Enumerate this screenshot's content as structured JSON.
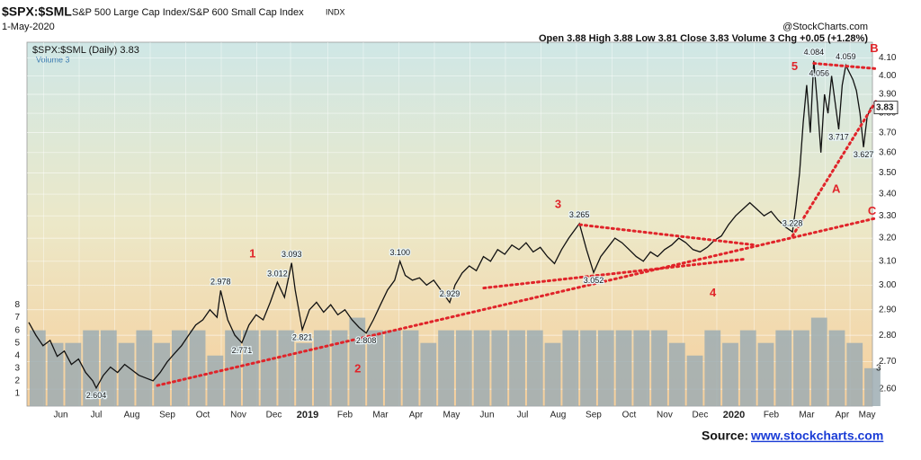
{
  "chart_data": {
    "type": "line",
    "title_symbol": "$SPX:$SML",
    "title": "S&P 500 Large Cap Index/S&P 600 Small Cap Index",
    "exchange": "INDX",
    "date": "1-May-2020",
    "watermark": "@StockCharts.com",
    "quote": "Open 3.88  High 3.88  Low 3.81  Close 3.83  Volume 3  Chg +0.05 (+1.28%)",
    "legend_price": "$SPX:$SML (Daily) 3.83",
    "legend_volume": "Volume 3",
    "last_price": {
      "value": 3.83,
      "label": "3.83"
    },
    "last_volume": 3,
    "source_label": "Source:",
    "source_link": "www.stockcharts.com",
    "log_scale": true,
    "grid": true,
    "xlim": [
      -0.45,
      23.35
    ],
    "ylim": [
      2.54,
      4.19
    ],
    "y2lim": [
      0,
      28.8
    ],
    "xticks": [
      {
        "value": 0.5,
        "label": "Jun"
      },
      {
        "value": 1.5,
        "label": "Jul"
      },
      {
        "value": 2.5,
        "label": "Aug"
      },
      {
        "value": 3.5,
        "label": "Sep"
      },
      {
        "value": 4.5,
        "label": "Oct"
      },
      {
        "value": 5.5,
        "label": "Nov"
      },
      {
        "value": 6.5,
        "label": "Dec"
      },
      {
        "value": 7.45,
        "label": "2019"
      },
      {
        "value": 8.5,
        "label": "Feb"
      },
      {
        "value": 9.5,
        "label": "Mar"
      },
      {
        "value": 10.5,
        "label": "Apr"
      },
      {
        "value": 11.5,
        "label": "May"
      },
      {
        "value": 12.5,
        "label": "Jun"
      },
      {
        "value": 13.5,
        "label": "Jul"
      },
      {
        "value": 14.5,
        "label": "Aug"
      },
      {
        "value": 15.5,
        "label": "Sep"
      },
      {
        "value": 16.5,
        "label": "Oct"
      },
      {
        "value": 17.5,
        "label": "Nov"
      },
      {
        "value": 18.5,
        "label": "Dec"
      },
      {
        "value": 19.45,
        "label": "2020"
      },
      {
        "value": 20.5,
        "label": "Feb"
      },
      {
        "value": 21.5,
        "label": "Mar"
      },
      {
        "value": 22.5,
        "label": "Apr"
      },
      {
        "value": 23.2,
        "label": "May"
      }
    ],
    "yticks": [
      {
        "value": 2.6,
        "label": "2.60"
      },
      {
        "value": 2.7,
        "label": "2.70"
      },
      {
        "value": 2.8,
        "label": "2.80"
      },
      {
        "value": 2.9,
        "label": "2.90"
      },
      {
        "value": 3.0,
        "label": "3.00"
      },
      {
        "value": 3.1,
        "label": "3.10"
      },
      {
        "value": 3.2,
        "label": "3.20"
      },
      {
        "value": 3.3,
        "label": "3.30"
      },
      {
        "value": 3.4,
        "label": "3.40"
      },
      {
        "value": 3.5,
        "label": "3.50"
      },
      {
        "value": 3.6,
        "label": "3.60"
      },
      {
        "value": 3.7,
        "label": "3.70"
      },
      {
        "value": 3.8,
        "label": "3.80"
      },
      {
        "value": 3.9,
        "label": "3.90"
      },
      {
        "value": 4.0,
        "label": "4.00"
      },
      {
        "value": 4.1,
        "label": "4.10"
      }
    ],
    "y2ticks": [
      1,
      2,
      3,
      4,
      5,
      6,
      7,
      8
    ],
    "series": [
      {
        "name": "$SPX:$SML",
        "color": "#111111",
        "x": [
          -0.4,
          -0.2,
          0.0,
          0.2,
          0.4,
          0.6,
          0.8,
          1.0,
          1.2,
          1.4,
          1.5,
          1.7,
          1.9,
          2.1,
          2.3,
          2.5,
          2.7,
          2.9,
          3.1,
          3.3,
          3.5,
          3.7,
          3.9,
          4.1,
          4.3,
          4.5,
          4.7,
          4.9,
          5.0,
          5.2,
          5.4,
          5.6,
          5.8,
          6.0,
          6.2,
          6.4,
          6.6,
          6.8,
          7.0,
          7.1,
          7.3,
          7.5,
          7.7,
          7.9,
          8.1,
          8.3,
          8.5,
          8.7,
          8.9,
          9.1,
          9.3,
          9.5,
          9.7,
          9.9,
          10.05,
          10.2,
          10.4,
          10.6,
          10.8,
          11.0,
          11.2,
          11.45,
          11.6,
          11.8,
          12.0,
          12.2,
          12.4,
          12.6,
          12.8,
          13.0,
          13.2,
          13.4,
          13.6,
          13.8,
          14.0,
          14.2,
          14.4,
          14.6,
          14.8,
          15.1,
          15.3,
          15.5,
          15.7,
          15.9,
          16.1,
          16.3,
          16.5,
          16.7,
          16.9,
          17.1,
          17.3,
          17.5,
          17.7,
          17.9,
          18.1,
          18.3,
          18.5,
          18.7,
          18.9,
          19.1,
          19.3,
          19.5,
          19.7,
          19.9,
          20.1,
          20.3,
          20.5,
          20.7,
          20.9,
          21.1,
          21.2,
          21.3,
          21.4,
          21.5,
          21.6,
          21.7,
          21.8,
          21.9,
          22.0,
          22.1,
          22.2,
          22.4,
          22.5,
          22.6,
          22.8,
          22.9,
          23.0,
          23.1,
          23.2,
          23.3
        ],
        "values": [
          2.85,
          2.8,
          2.76,
          2.78,
          2.72,
          2.74,
          2.69,
          2.71,
          2.66,
          2.63,
          2.604,
          2.65,
          2.68,
          2.66,
          2.69,
          2.67,
          2.65,
          2.64,
          2.63,
          2.66,
          2.7,
          2.73,
          2.76,
          2.8,
          2.84,
          2.86,
          2.9,
          2.87,
          2.978,
          2.86,
          2.8,
          2.771,
          2.84,
          2.88,
          2.86,
          2.93,
          3.012,
          2.95,
          3.093,
          2.98,
          2.821,
          2.9,
          2.93,
          2.89,
          2.92,
          2.88,
          2.9,
          2.86,
          2.83,
          2.808,
          2.86,
          2.92,
          2.98,
          3.02,
          3.1,
          3.04,
          3.02,
          3.03,
          3.0,
          3.02,
          2.98,
          2.929,
          3.0,
          3.05,
          3.08,
          3.06,
          3.12,
          3.1,
          3.15,
          3.13,
          3.17,
          3.15,
          3.18,
          3.14,
          3.16,
          3.12,
          3.09,
          3.15,
          3.2,
          3.265,
          3.15,
          3.052,
          3.12,
          3.16,
          3.2,
          3.18,
          3.15,
          3.12,
          3.1,
          3.14,
          3.12,
          3.15,
          3.17,
          3.2,
          3.18,
          3.15,
          3.14,
          3.16,
          3.19,
          3.21,
          3.26,
          3.3,
          3.33,
          3.36,
          3.33,
          3.3,
          3.32,
          3.28,
          3.25,
          3.228,
          3.35,
          3.5,
          3.75,
          3.95,
          3.7,
          4.084,
          3.85,
          3.6,
          3.9,
          3.8,
          4.0,
          3.717,
          3.95,
          4.059,
          3.98,
          3.92,
          3.8,
          3.627,
          3.78,
          3.83
        ]
      },
      {
        "name": "Volume",
        "color": "#9eadb3",
        "axis": "y2",
        "x": [
          -0.4,
          0.1,
          0.6,
          1.1,
          1.6,
          2.1,
          2.6,
          3.1,
          3.6,
          4.1,
          4.6,
          5.1,
          5.6,
          6.1,
          6.6,
          7.1,
          7.6,
          8.1,
          8.6,
          9.1,
          9.6,
          10.1,
          10.6,
          11.1,
          11.6,
          12.1,
          12.6,
          13.1,
          13.6,
          14.1,
          14.6,
          15.1,
          15.6,
          16.1,
          16.6,
          17.1,
          17.6,
          18.1,
          18.6,
          19.1,
          19.6,
          20.1,
          20.6,
          21.1,
          21.6,
          22.1,
          22.6,
          23.1
        ],
        "values": [
          6,
          5,
          5,
          6,
          6,
          5,
          6,
          5,
          6,
          6,
          4,
          6,
          6,
          6,
          6,
          5,
          6,
          6,
          7,
          6,
          6,
          6,
          5,
          6,
          6,
          6,
          6,
          6,
          6,
          5,
          6,
          6,
          6,
          6,
          6,
          6,
          5,
          4,
          6,
          5,
          6,
          5,
          6,
          6,
          7,
          6,
          5,
          3
        ]
      }
    ],
    "point_labels": [
      {
        "label": "2.604",
        "x": 1.5,
        "y": 2.604
      },
      {
        "label": "2.978",
        "x": 5.0,
        "y": 2.978
      },
      {
        "label": "2.771",
        "x": 5.6,
        "y": 2.771
      },
      {
        "label": "3.012",
        "x": 6.6,
        "y": 3.012
      },
      {
        "label": "3.093",
        "x": 7.0,
        "y": 3.093
      },
      {
        "label": "2.821",
        "x": 7.3,
        "y": 2.821
      },
      {
        "label": "2.808",
        "x": 9.1,
        "y": 2.808
      },
      {
        "label": "3.100",
        "x": 10.05,
        "y": 3.1
      },
      {
        "label": "2.929",
        "x": 11.45,
        "y": 2.929
      },
      {
        "label": "3.265",
        "x": 15.1,
        "y": 3.265
      },
      {
        "label": "3.052",
        "x": 15.5,
        "y": 3.052
      },
      {
        "label": "3.228",
        "x": 21.1,
        "y": 3.228
      },
      {
        "label": "4.084",
        "x": 21.7,
        "y": 4.084
      },
      {
        "label": "4.056",
        "x": 21.85,
        "y": 4.056
      },
      {
        "label": "4.059",
        "x": 22.6,
        "y": 4.059
      },
      {
        "label": "3.717",
        "x": 22.4,
        "y": 3.717
      },
      {
        "label": "3.627",
        "x": 23.1,
        "y": 3.627
      }
    ],
    "wave_labels": [
      {
        "label": "1",
        "x": 5.9,
        "y": 3.13
      },
      {
        "label": "2",
        "x": 8.86,
        "y": 2.672
      },
      {
        "label": "3",
        "x": 14.5,
        "y": 3.35
      },
      {
        "label": "4",
        "x": 18.86,
        "y": 2.966
      },
      {
        "label": "5",
        "x": 21.16,
        "y": 4.05
      },
      {
        "label": "A",
        "x": 22.33,
        "y": 3.42
      },
      {
        "label": "B",
        "x": 23.4,
        "y": 4.15
      },
      {
        "label": "C",
        "x": 23.34,
        "y": 3.32
      }
    ],
    "trendline_color": "#e0242a",
    "trendlines": [
      {
        "x": [
          3.22,
          23.47
        ],
        "y": [
          2.613,
          3.29
        ]
      },
      {
        "x": [
          12.41,
          19.8
        ],
        "y": [
          2.988,
          3.11
        ]
      },
      {
        "x": [
          15.11,
          20.05
        ],
        "y": [
          3.26,
          3.17
        ]
      },
      {
        "x": [
          21.1,
          23.47
        ],
        "y": [
          3.21,
          3.87
        ]
      },
      {
        "x": [
          21.7,
          23.47
        ],
        "y": [
          4.07,
          4.04
        ]
      }
    ]
  }
}
